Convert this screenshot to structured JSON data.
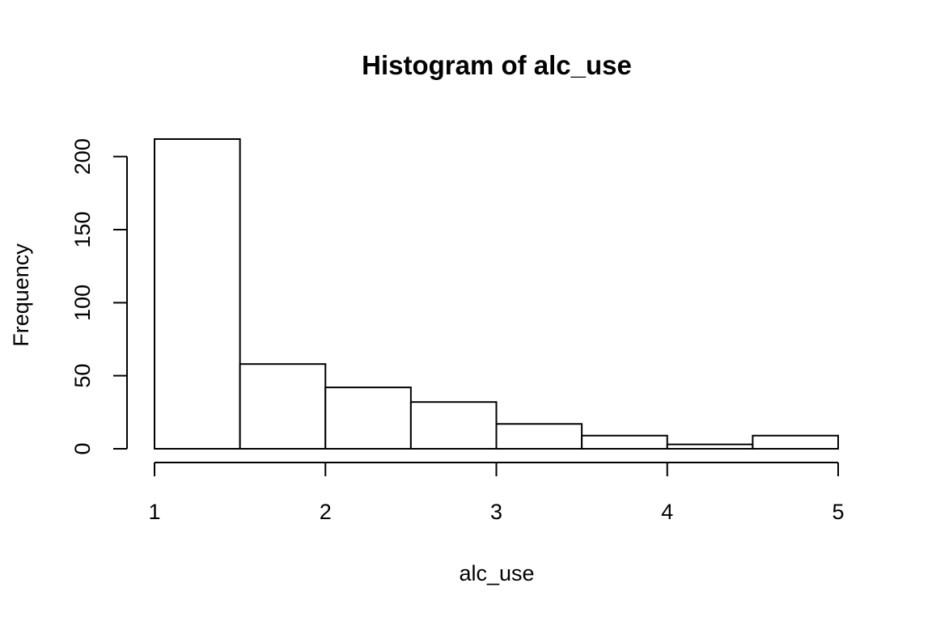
{
  "chart_data": {
    "type": "bar",
    "title": "Histogram of alc_use",
    "xlabel": "alc_use",
    "ylabel": "Frequency",
    "bins": [
      {
        "x0": 1.0,
        "x1": 1.5,
        "count": 212
      },
      {
        "x0": 1.5,
        "x1": 2.0,
        "count": 58
      },
      {
        "x0": 2.0,
        "x1": 2.5,
        "count": 42
      },
      {
        "x0": 2.5,
        "x1": 3.0,
        "count": 32
      },
      {
        "x0": 3.0,
        "x1": 3.5,
        "count": 17
      },
      {
        "x0": 3.5,
        "x1": 4.0,
        "count": 9
      },
      {
        "x0": 4.0,
        "x1": 4.5,
        "count": 3
      },
      {
        "x0": 4.5,
        "x1": 5.0,
        "count": 9
      }
    ],
    "xlim": [
      1,
      5
    ],
    "ylim": [
      0,
      212
    ],
    "x_ticks": [
      1,
      2,
      3,
      4,
      5
    ],
    "y_ticks": [
      0,
      50,
      100,
      150,
      200
    ],
    "grid": false,
    "colors": {
      "bar_fill": "#ffffff",
      "bar_stroke": "#000000"
    }
  }
}
